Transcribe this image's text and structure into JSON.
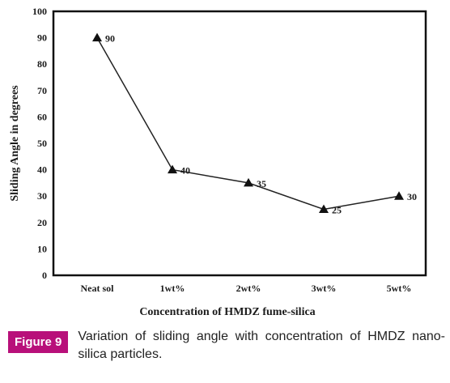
{
  "chart_data": {
    "type": "line",
    "categories": [
      "Neat sol",
      "1wt%",
      "2wt%",
      "3wt%",
      "5wt%"
    ],
    "values": [
      90,
      40,
      35,
      25,
      30
    ],
    "data_labels": [
      "90",
      "40",
      "35",
      "25",
      "30"
    ],
    "xlabel": "Concentration of HMDZ fume-silica",
    "ylabel": "Sliding Angle in degrees",
    "ylim": [
      0,
      100
    ],
    "yticks": [
      0,
      10,
      20,
      30,
      40,
      50,
      60,
      70,
      80,
      90,
      100
    ],
    "marker": "triangle",
    "grid": false
  },
  "caption": {
    "label": "Figure 9",
    "text": "Variation of sliding angle with concentration of HMDZ nano-silica particles."
  }
}
